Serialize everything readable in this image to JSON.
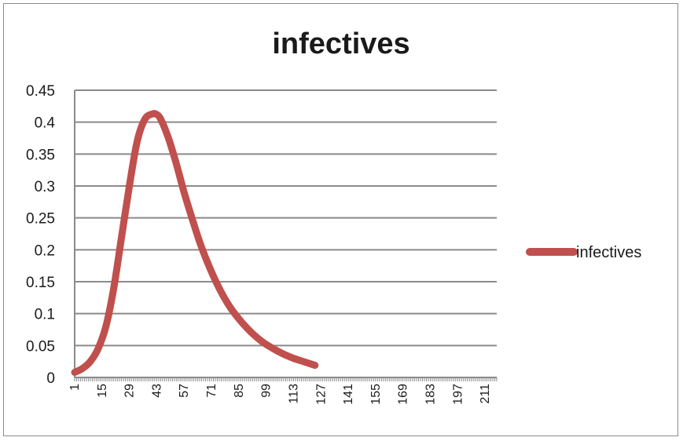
{
  "chart_data": {
    "type": "line",
    "title": "infectives",
    "xlabel": "",
    "ylabel": "",
    "ylim": [
      0,
      0.45
    ],
    "yticks": [
      "0",
      "0.05",
      "0.1",
      "0.15",
      "0.2",
      "0.25",
      "0.3",
      "0.35",
      "0.4",
      "0.45"
    ],
    "xlim": [
      1,
      217
    ],
    "xtick_labels": [
      "1",
      "15",
      "29",
      "43",
      "57",
      "71",
      "85",
      "99",
      "113",
      "127",
      "141",
      "155",
      "169",
      "183",
      "197",
      "211"
    ],
    "grid": true,
    "legend_position": "right",
    "series": [
      {
        "name": "infectives",
        "color": "#c0504d",
        "x": [
          1,
          5,
          9,
          13,
          17,
          21,
          25,
          29,
          33,
          37,
          41,
          43,
          45,
          49,
          53,
          57,
          61,
          65,
          69,
          73,
          77,
          81,
          85,
          89,
          93,
          97,
          101,
          105,
          109,
          113,
          117,
          121,
          124
        ],
        "y": [
          0.008,
          0.014,
          0.025,
          0.045,
          0.08,
          0.14,
          0.22,
          0.3,
          0.37,
          0.405,
          0.413,
          0.412,
          0.405,
          0.375,
          0.335,
          0.29,
          0.25,
          0.212,
          0.18,
          0.152,
          0.128,
          0.108,
          0.092,
          0.078,
          0.066,
          0.056,
          0.048,
          0.041,
          0.035,
          0.03,
          0.026,
          0.022,
          0.019
        ]
      }
    ]
  }
}
